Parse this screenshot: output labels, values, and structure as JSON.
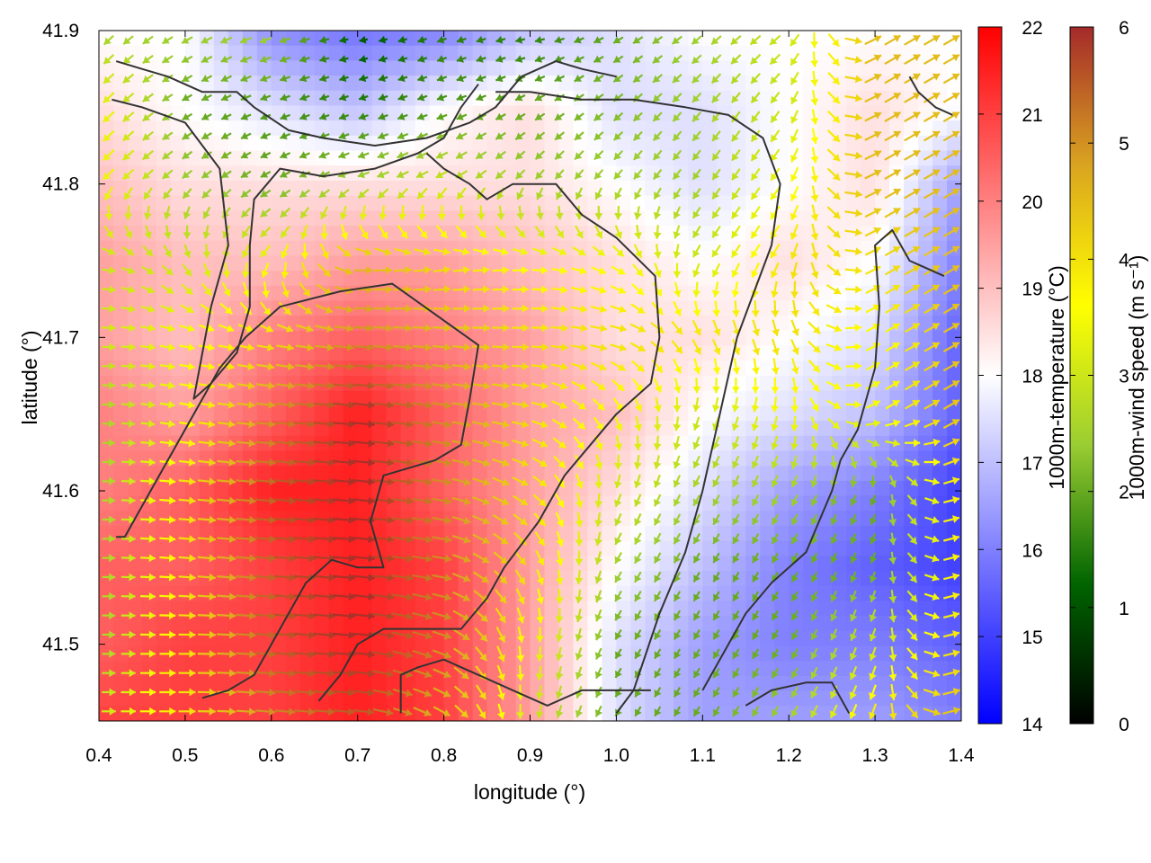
{
  "chart_data": {
    "type": "heatmap",
    "xlabel": "longitude (°)",
    "ylabel": "latitude (°)",
    "xlim": [
      0.4,
      1.4
    ],
    "ylim": [
      41.45,
      41.9
    ],
    "x_ticks": [
      "0.4",
      "0.5",
      "0.6",
      "0.7",
      "0.8",
      "0.9",
      "1.0",
      "1.1",
      "1.2",
      "1.3",
      "1.4"
    ],
    "y_ticks": [
      "41.5",
      "41.6",
      "41.7",
      "41.8",
      "41.9"
    ],
    "heatmap": {
      "quantity": "1000m-temperature",
      "colorbar_label": "1000m-temperature (°C)",
      "range": [
        14,
        22
      ],
      "ticks": [
        "14",
        "15",
        "16",
        "17",
        "18",
        "19",
        "20",
        "21",
        "22"
      ],
      "colors": [
        "#0000ff",
        "#ffffff",
        "#ff0000"
      ],
      "x": [
        0.4,
        0.5,
        0.6,
        0.7,
        0.8,
        0.9,
        1.0,
        1.1,
        1.2,
        1.3,
        1.4
      ],
      "y": [
        41.9,
        41.85,
        41.8,
        41.75,
        41.7,
        41.65,
        41.6,
        41.55,
        41.5,
        41.45
      ],
      "z": [
        [
          18.0,
          18.0,
          16.2,
          15.8,
          16.0,
          17.0,
          17.5,
          18.0,
          18.0,
          18.0,
          18.0
        ],
        [
          18.5,
          18.0,
          17.5,
          17.0,
          18.0,
          18.5,
          17.5,
          17.5,
          18.0,
          18.5,
          18.0
        ],
        [
          19.0,
          18.5,
          18.5,
          18.5,
          18.5,
          18.5,
          18.0,
          17.5,
          18.0,
          18.5,
          16.5
        ],
        [
          19.5,
          19.0,
          19.0,
          19.5,
          19.5,
          19.0,
          18.5,
          18.0,
          18.5,
          18.0,
          16.0
        ],
        [
          19.5,
          19.0,
          20.0,
          20.5,
          20.0,
          19.5,
          18.5,
          18.5,
          18.0,
          17.5,
          15.5
        ],
        [
          20.0,
          19.5,
          20.5,
          21.5,
          20.5,
          19.5,
          19.0,
          18.0,
          17.5,
          17.0,
          15.5
        ],
        [
          20.0,
          20.5,
          21.5,
          21.5,
          20.5,
          19.5,
          18.5,
          17.5,
          16.5,
          16.0,
          15.0
        ],
        [
          20.5,
          20.5,
          21.0,
          21.5,
          21.0,
          19.5,
          18.0,
          17.0,
          16.0,
          15.5,
          15.0
        ],
        [
          20.5,
          21.0,
          21.0,
          21.5,
          21.0,
          19.5,
          17.5,
          16.5,
          16.0,
          16.0,
          15.5
        ],
        [
          21.0,
          21.0,
          21.0,
          21.5,
          21.0,
          19.5,
          17.5,
          16.5,
          16.5,
          16.5,
          16.0
        ]
      ]
    },
    "vectors": {
      "quantity": "1000m-wind speed",
      "colorbar_label": "1000m-wind speed (m s⁻¹)",
      "range": [
        0,
        6
      ],
      "ticks": [
        "0",
        "1",
        "2",
        "3",
        "4",
        "5",
        "6"
      ],
      "colors": [
        "#000000",
        "#006400",
        "#9acd32",
        "#ffff00",
        "#daa520",
        "#a52a2a"
      ],
      "x": [
        0.4,
        0.5,
        0.6,
        0.7,
        0.8,
        0.9,
        1.0,
        1.1,
        1.2,
        1.3,
        1.4
      ],
      "y": [
        41.9,
        41.85,
        41.8,
        41.75,
        41.7,
        41.65,
        41.6,
        41.55,
        41.5,
        41.45
      ],
      "direction_deg": [
        [
          225,
          240,
          250,
          260,
          250,
          260,
          240,
          230,
          230,
          60,
          60
        ],
        [
          225,
          240,
          250,
          250,
          250,
          240,
          230,
          220,
          215,
          60,
          60
        ],
        [
          225,
          230,
          240,
          250,
          240,
          220,
          220,
          215,
          215,
          60,
          60
        ],
        [
          90,
          150,
          220,
          90,
          80,
          90,
          120,
          215,
          210,
          60,
          60
        ],
        [
          90,
          100,
          100,
          95,
          95,
          90,
          100,
          150,
          160,
          60,
          60
        ],
        [
          90,
          100,
          95,
          95,
          100,
          100,
          150,
          200,
          190,
          60,
          60
        ],
        [
          90,
          95,
          95,
          95,
          100,
          120,
          200,
          210,
          205,
          200,
          60
        ],
        [
          90,
          95,
          95,
          95,
          100,
          150,
          210,
          210,
          210,
          200,
          60
        ],
        [
          90,
          90,
          95,
          95,
          110,
          180,
          210,
          210,
          210,
          200,
          60
        ],
        [
          90,
          90,
          95,
          95,
          120,
          190,
          210,
          210,
          210,
          200,
          60
        ]
      ],
      "speed": [
        [
          2.5,
          2.5,
          2.5,
          1.0,
          1.5,
          1.5,
          2.0,
          2.5,
          3.0,
          4.5,
          4.5
        ],
        [
          3.5,
          2.0,
          1.8,
          1.5,
          1.8,
          2.0,
          2.2,
          2.5,
          3.0,
          4.5,
          4.5
        ],
        [
          3.5,
          2.5,
          2.0,
          2.5,
          3.0,
          2.5,
          2.5,
          2.5,
          3.5,
          4.5,
          4.5
        ],
        [
          3.0,
          3.0,
          3.5,
          4.5,
          4.0,
          3.5,
          3.5,
          3.0,
          4.0,
          4.0,
          4.5
        ],
        [
          3.0,
          3.5,
          4.0,
          5.0,
          4.5,
          4.0,
          4.0,
          4.0,
          4.0,
          3.5,
          4.5
        ],
        [
          2.5,
          3.5,
          5.0,
          6.0,
          5.0,
          4.0,
          3.5,
          3.0,
          3.5,
          3.5,
          4.5
        ],
        [
          2.5,
          4.0,
          5.5,
          6.0,
          5.0,
          4.0,
          3.0,
          2.5,
          2.5,
          2.0,
          4.0
        ],
        [
          2.5,
          4.0,
          5.5,
          6.0,
          5.0,
          4.0,
          2.5,
          2.0,
          2.0,
          2.0,
          4.0
        ],
        [
          2.5,
          4.0,
          5.5,
          6.0,
          5.0,
          3.5,
          2.0,
          2.0,
          2.0,
          3.0,
          4.0
        ],
        [
          3.0,
          4.0,
          5.0,
          5.5,
          4.5,
          3.0,
          2.0,
          2.0,
          2.5,
          4.0,
          4.5
        ]
      ]
    },
    "contours": {
      "color": "#333333",
      "lines": [
        [
          [
            0.42,
            41.88
          ],
          [
            0.45,
            41.875
          ],
          [
            0.48,
            41.87
          ],
          [
            0.52,
            41.86
          ],
          [
            0.56,
            41.86
          ],
          [
            0.58,
            41.85
          ],
          [
            0.62,
            41.835
          ],
          [
            0.66,
            41.83
          ],
          [
            0.72,
            41.825
          ],
          [
            0.78,
            41.83
          ],
          [
            0.83,
            41.84
          ],
          [
            0.86,
            41.85
          ],
          [
            0.89,
            41.87
          ],
          [
            0.93,
            41.88
          ],
          [
            0.96,
            41.875
          ],
          [
            1.0,
            41.87
          ]
        ],
        [
          [
            0.415,
            41.855
          ],
          [
            0.45,
            41.85
          ],
          [
            0.5,
            41.84
          ],
          [
            0.54,
            41.81
          ],
          [
            0.55,
            41.76
          ],
          [
            0.53,
            41.72
          ],
          [
            0.52,
            41.69
          ],
          [
            0.51,
            41.66
          ],
          [
            0.53,
            41.67
          ],
          [
            0.56,
            41.69
          ],
          [
            0.575,
            41.72
          ],
          [
            0.575,
            41.76
          ],
          [
            0.58,
            41.79
          ],
          [
            0.61,
            41.81
          ],
          [
            0.66,
            41.805
          ],
          [
            0.72,
            41.81
          ],
          [
            0.77,
            41.82
          ],
          [
            0.8,
            41.83
          ],
          [
            0.82,
            41.85
          ],
          [
            0.84,
            41.865
          ]
        ],
        [
          [
            0.42,
            41.57
          ],
          [
            0.43,
            41.57
          ],
          [
            0.46,
            41.6
          ],
          [
            0.48,
            41.62
          ],
          [
            0.5,
            41.64
          ],
          [
            0.54,
            41.68
          ],
          [
            0.57,
            41.7
          ],
          [
            0.61,
            41.72
          ],
          [
            0.68,
            41.73
          ],
          [
            0.74,
            41.735
          ],
          [
            0.79,
            41.715
          ],
          [
            0.84,
            41.695
          ],
          [
            0.83,
            41.66
          ],
          [
            0.82,
            41.63
          ],
          [
            0.79,
            41.62
          ],
          [
            0.73,
            41.61
          ],
          [
            0.715,
            41.58
          ],
          [
            0.73,
            41.55
          ],
          [
            0.7,
            41.55
          ],
          [
            0.67,
            41.555
          ],
          [
            0.64,
            41.54
          ],
          [
            0.62,
            41.52
          ],
          [
            0.6,
            41.5
          ],
          [
            0.58,
            41.48
          ],
          [
            0.55,
            41.47
          ],
          [
            0.52,
            41.465
          ]
        ],
        [
          [
            0.655,
            41.463
          ],
          [
            0.68,
            41.48
          ],
          [
            0.7,
            41.5
          ],
          [
            0.73,
            41.51
          ],
          [
            0.78,
            41.51
          ],
          [
            0.82,
            41.51
          ],
          [
            0.85,
            41.53
          ],
          [
            0.87,
            41.55
          ],
          [
            0.91,
            41.58
          ],
          [
            0.94,
            41.61
          ],
          [
            0.97,
            41.63
          ],
          [
            1.0,
            41.65
          ],
          [
            1.04,
            41.67
          ],
          [
            1.05,
            41.7
          ],
          [
            1.045,
            41.74
          ],
          [
            1.0,
            41.765
          ],
          [
            0.96,
            41.78
          ],
          [
            0.93,
            41.8
          ],
          [
            0.88,
            41.8
          ],
          [
            0.85,
            41.79
          ],
          [
            0.83,
            41.8
          ],
          [
            0.8,
            41.81
          ],
          [
            0.78,
            41.82
          ]
        ],
        [
          [
            0.75,
            41.455
          ],
          [
            0.75,
            41.48
          ],
          [
            0.77,
            41.485
          ],
          [
            0.8,
            41.49
          ],
          [
            0.84,
            41.48
          ],
          [
            0.88,
            41.47
          ],
          [
            0.92,
            41.46
          ],
          [
            0.96,
            41.47
          ],
          [
            1.0,
            41.47
          ],
          [
            1.04,
            41.47
          ]
        ],
        [
          [
            1.1,
            41.47
          ],
          [
            1.12,
            41.49
          ],
          [
            1.15,
            41.52
          ],
          [
            1.18,
            41.54
          ],
          [
            1.22,
            41.56
          ],
          [
            1.25,
            41.6
          ],
          [
            1.26,
            41.62
          ],
          [
            1.28,
            41.64
          ],
          [
            1.3,
            41.68
          ],
          [
            1.305,
            41.72
          ],
          [
            1.3,
            41.76
          ],
          [
            1.32,
            41.77
          ],
          [
            1.34,
            41.75
          ],
          [
            1.38,
            41.74
          ]
        ],
        [
          [
            1.0,
            41.455
          ],
          [
            1.02,
            41.47
          ],
          [
            1.05,
            41.52
          ],
          [
            1.08,
            41.56
          ],
          [
            1.1,
            41.6
          ],
          [
            1.12,
            41.65
          ],
          [
            1.14,
            41.7
          ],
          [
            1.16,
            41.73
          ],
          [
            1.18,
            41.76
          ],
          [
            1.19,
            41.8
          ],
          [
            1.17,
            41.83
          ],
          [
            1.13,
            41.845
          ],
          [
            1.08,
            41.85
          ],
          [
            1.02,
            41.855
          ],
          [
            0.96,
            41.855
          ],
          [
            0.9,
            41.86
          ],
          [
            0.86,
            41.86
          ]
        ],
        [
          [
            1.15,
            41.46
          ],
          [
            1.18,
            41.47
          ],
          [
            1.22,
            41.475
          ],
          [
            1.25,
            41.475
          ],
          [
            1.27,
            41.455
          ]
        ],
        [
          [
            1.34,
            41.87
          ],
          [
            1.35,
            41.86
          ],
          [
            1.37,
            41.85
          ],
          [
            1.39,
            41.845
          ]
        ]
      ]
    }
  }
}
